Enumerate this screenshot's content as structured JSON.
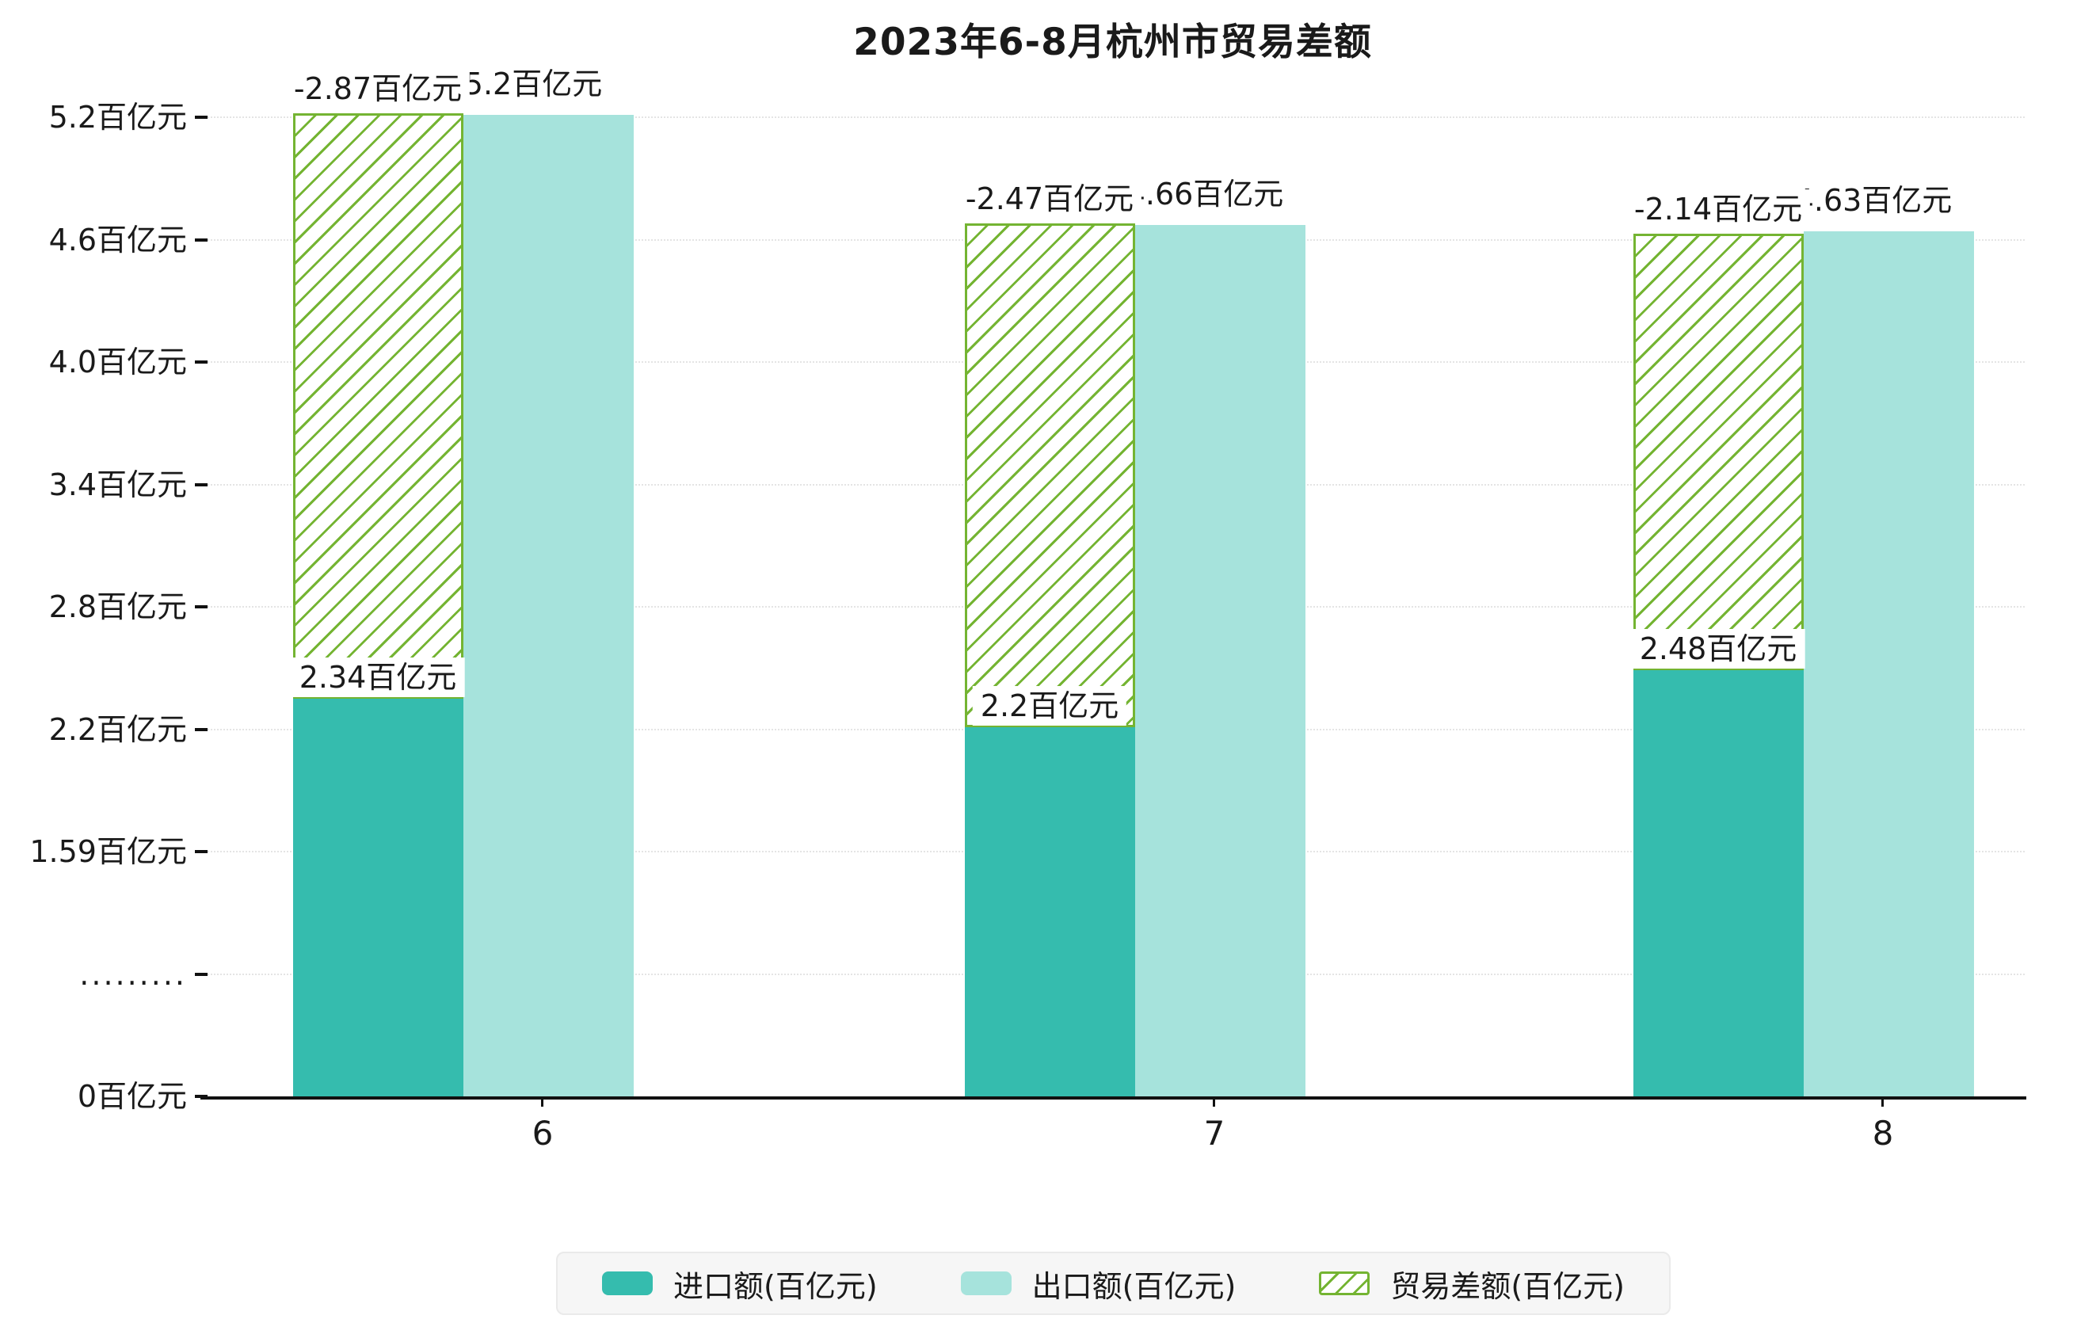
{
  "title": "2023年6-8月杭州市贸易差额",
  "chart_data": {
    "type": "bar",
    "title": "2023年6-8月杭州市贸易差额",
    "categories": [
      "6",
      "7",
      "8"
    ],
    "series": [
      {
        "key": "import",
        "name": "进口额(百亿元)",
        "values": [
          2.34,
          2.2,
          2.48
        ],
        "labels": [
          "2.34百亿元",
          "2.2百亿元",
          "2.48百亿元"
        ],
        "color": "#35bcae",
        "style": "solid"
      },
      {
        "key": "export",
        "name": "出口额(百亿元)",
        "values": [
          5.2,
          4.66,
          4.63
        ],
        "labels": [
          "5.2百亿元",
          "4.66百亿元",
          "4.63百亿元"
        ],
        "color": "#a6e3dc",
        "style": "solid"
      },
      {
        "key": "trade-balance",
        "name": "贸易差额(百亿元)",
        "values": [
          -2.87,
          -2.47,
          -2.14
        ],
        "labels": [
          "-2.87百亿元",
          "-2.47百亿元",
          "-2.14百亿元"
        ],
        "color": "#74b432",
        "style": "hatched",
        "rendering": "hatched outline bar stacked from the import value up to the export value"
      }
    ],
    "y_axis": {
      "unit": "百亿元",
      "tick_labels": [
        "0百亿元",
        ".........",
        "1.59百亿元",
        "2.2百亿元",
        "2.8百亿元",
        "3.4百亿元",
        "4.0百亿元",
        "4.6百亿元",
        "5.2百亿元"
      ],
      "axis_break_between": [
        "0百亿元",
        "1.59百亿元"
      ]
    },
    "x_axis": {
      "tick_labels": [
        "6",
        "7",
        "8"
      ]
    },
    "legend": {
      "position": "bottom",
      "entries": [
        "进口额(百亿元)",
        "出口额(百亿元)",
        "贸易差额(百亿元)"
      ]
    },
    "grid": true,
    "ylim_display": [
      0,
      5.2
    ]
  },
  "colors": {
    "import": "#35bcae",
    "export": "#a6e3dc",
    "balance": "#74b432",
    "axis": "#111111",
    "gridline": "#e4e4e4",
    "legend_bg": "#f6f6f6",
    "legend_border": "#eaeaea",
    "background": "#ffffff"
  }
}
